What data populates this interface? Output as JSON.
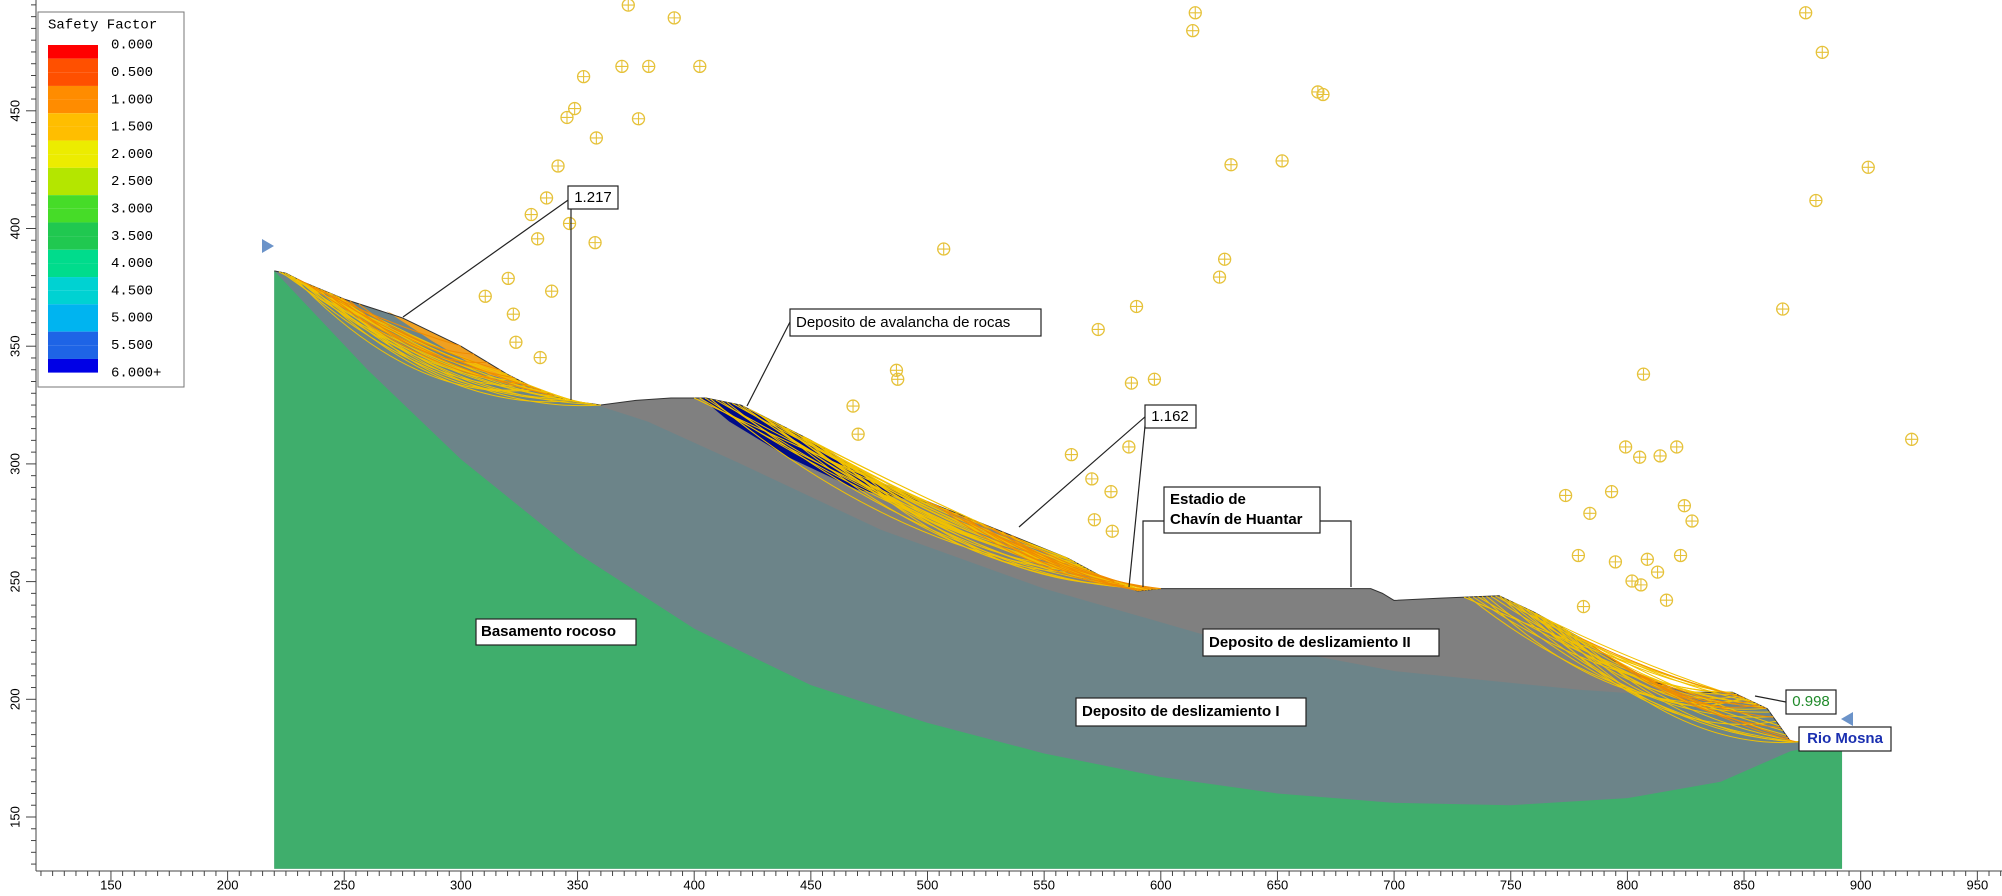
{
  "legend": {
    "title": "Safety Factor",
    "items": [
      {
        "label": "0.000",
        "color": "#ff0000"
      },
      {
        "label": "0.500",
        "color": "#ff5000"
      },
      {
        "label": "1.000",
        "color": "#ff8c00"
      },
      {
        "label": "1.500",
        "color": "#ffbe00"
      },
      {
        "label": "2.000",
        "color": "#ecec00"
      },
      {
        "label": "2.500",
        "color": "#b4e600"
      },
      {
        "label": "3.000",
        "color": "#46dc28"
      },
      {
        "label": "3.500",
        "color": "#20c850"
      },
      {
        "label": "4.000",
        "color": "#00dc8c"
      },
      {
        "label": "4.500",
        "color": "#00d2d2"
      },
      {
        "label": "5.000",
        "color": "#00b4f0"
      },
      {
        "label": "5.500",
        "color": "#1e64e6"
      },
      {
        "label": "6.000+",
        "color": "#0000e6"
      }
    ]
  },
  "x_axis": {
    "ticks": [
      150,
      200,
      250,
      300,
      350,
      400,
      450,
      500,
      550,
      600,
      650,
      700,
      750,
      800,
      850,
      900,
      950
    ]
  },
  "y_axis": {
    "ticks": [
      150,
      200,
      250,
      300,
      350,
      400,
      450
    ]
  },
  "annotations": {
    "safety_factor_1": "1.217",
    "safety_factor_2": "1.162",
    "safety_factor_3": "0.998",
    "avalanche_deposit": "Deposito de avalancha de rocas",
    "stadium": [
      "Estadio de",
      "Chavín de Huantar"
    ],
    "bedrock": "Basamento rocoso",
    "landslide_deposit_2": "Deposito de deslizamiento II",
    "landslide_deposit_1": "Deposito de deslizamiento I",
    "river": "Rio Mosna"
  }
}
